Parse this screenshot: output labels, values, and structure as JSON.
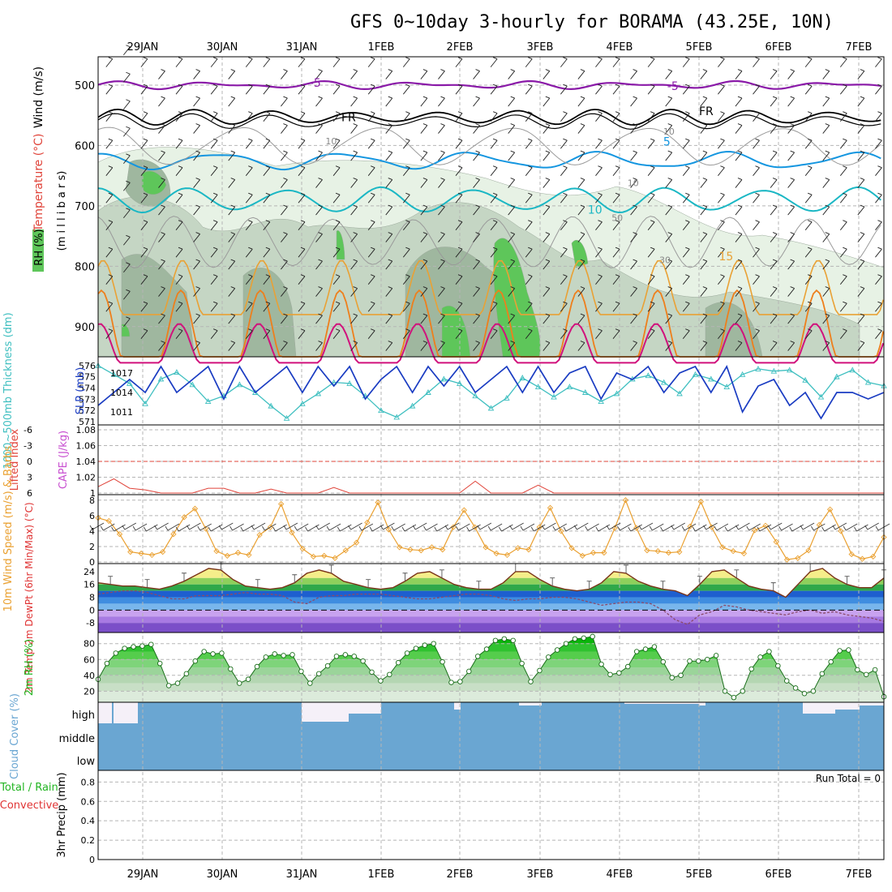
{
  "page": {
    "title": "GFS 0~10day 3-hourly for BORAMA (43.25E, 10N)"
  },
  "colors": {
    "purple": "#8a1aa8",
    "black": "#000000",
    "blue": "#1496e0",
    "cyan": "#1ab7c4",
    "orange": "#e9a135",
    "darkorange": "#ee7f1c",
    "magenta": "#d1127c",
    "rh_light": "#e7f2e5",
    "rh_mid": "#c5d6c4",
    "rh_dark": "#9fb79f",
    "rh_green": "#5ec65a",
    "slp_blue": "#1a3cc2",
    "thick_cyan": "#3fbfc0",
    "cape_violet": "#c84fd0",
    "li_red": "#e0443a",
    "wind_orange": "#eaa030",
    "cloud_blue": "#6aa6d2",
    "cloud_white": "#f5f0f8",
    "precip_green": "#22b522",
    "precip_red": "#e03535"
  },
  "chart_data": [
    {
      "panel": "upper-air",
      "type": "contour",
      "ylabel_wind": "Wind (m/s)",
      "ylabel_temp": "Temperature (°C)",
      "ylabel_rh": "RH (%)",
      "ylabel_axis": "(m i l l i b a r s)",
      "x_ticks": [
        "29JAN",
        "30JAN",
        "31JAN",
        "1FEB",
        "2FEB",
        "3FEB",
        "4FEB",
        "5FEB",
        "6FEB",
        "7FEB"
      ],
      "y_ticks": [
        500,
        600,
        700,
        800,
        900
      ],
      "ylim": [
        453,
        950
      ],
      "contour_labels": [
        {
          "text": "-5",
          "t": 2.1,
          "p": 503,
          "color": "purple"
        },
        {
          "text": "-5",
          "t": 6.6,
          "p": 508,
          "color": "purple"
        },
        {
          "text": "FR",
          "t": 2.5,
          "p": 560,
          "color": "black"
        },
        {
          "text": "FR",
          "t": 7.0,
          "p": 550,
          "color": "black"
        },
        {
          "text": "5",
          "t": 6.55,
          "p": 600,
          "color": "blue"
        },
        {
          "text": "10",
          "t": 5.6,
          "p": 713,
          "color": "cyan"
        },
        {
          "text": "15",
          "t": 7.25,
          "p": 790,
          "color": "orange"
        },
        {
          "text": "10",
          "t": 2.3,
          "p": 598,
          "color": "gray"
        },
        {
          "text": "10",
          "t": 6.1,
          "p": 667,
          "color": "gray"
        },
        {
          "text": "10",
          "t": 6.55,
          "p": 582,
          "color": "gray"
        },
        {
          "text": "50",
          "t": 5.9,
          "p": 725,
          "color": "gray"
        },
        {
          "text": "30",
          "t": 6.5,
          "p": 795,
          "color": "gray"
        }
      ]
    },
    {
      "panel": "slp-thickness",
      "type": "line",
      "ylabel_left": "1000~500mb Thickness (dm)",
      "ylabel_right": "SLP (mb)",
      "y_left_ticks": [
        571,
        572,
        573,
        574,
        575,
        576
      ],
      "y_right_ticks": [
        1011,
        1014,
        1017
      ],
      "series": [
        {
          "name": "SLP (mb)",
          "values": [
            1012,
            1014,
            1016,
            1014,
            1018,
            1014,
            1016,
            1018,
            1013,
            1018,
            1014,
            1016,
            1018,
            1014,
            1018,
            1015,
            1018,
            1013,
            1016,
            1018,
            1014,
            1018,
            1015,
            1018,
            1014,
            1016,
            1018,
            1014,
            1018,
            1014,
            1017,
            1018,
            1013,
            1017,
            1016,
            1018,
            1014,
            1017,
            1018,
            1014,
            1018,
            1011,
            1015,
            1016,
            1012,
            1014,
            1010,
            1014,
            1014,
            1013,
            1014
          ]
        },
        {
          "name": "1000~500mb Thickness (dm)",
          "values": [
            576,
            575.2,
            574.4,
            572.6,
            574.8,
            575.4,
            574.3,
            572.8,
            573.3,
            574.3,
            573.6,
            572.4,
            571.3,
            572.6,
            573.5,
            574.5,
            574.4,
            573.3,
            572,
            571.4,
            572.4,
            573.6,
            574.8,
            574.4,
            573.3,
            572.2,
            573.1,
            574.9,
            574.1,
            573.2,
            574.1,
            573.6,
            572.8,
            573.5,
            574.8,
            575.1,
            574.5,
            573.5,
            575.2,
            574.8,
            574.1,
            575.2,
            575.7,
            575.5,
            575.6,
            574.7,
            573.2,
            575,
            575.6,
            574.5,
            574.2
          ]
        }
      ]
    },
    {
      "panel": "cape-li",
      "type": "line",
      "ylabel_left": "Lifted Index",
      "ylabel_right": "CAPE (J/kg)",
      "y_left_ticks": [
        "-6",
        "-3",
        "0",
        "3",
        "6"
      ],
      "y_right_ticks": [
        "1.08",
        "1.06",
        "1.04",
        "1.02",
        "1"
      ],
      "series": [
        {
          "name": "CAPE (J/kg)",
          "values": [
            1.008,
            1.018,
            1.006,
            1.004,
            1,
            1,
            1,
            1.006,
            1.006,
            1,
            1,
            1.005,
            1,
            1,
            1,
            1.007,
            1,
            1,
            1,
            1,
            1,
            1,
            1,
            1,
            1.015,
            1,
            1,
            1,
            1.01,
            1,
            1,
            1,
            1,
            1,
            1,
            1,
            1,
            1,
            1,
            1,
            1,
            1,
            1,
            1,
            1,
            1,
            1,
            1,
            1,
            1,
            1
          ]
        }
      ]
    },
    {
      "panel": "wind10m",
      "type": "line",
      "ylabel": "10m Wind Speed (m/s) & Barbs",
      "y_ticks": [
        0,
        2,
        4,
        6,
        8
      ],
      "series": [
        {
          "name": "10m Wind Speed",
          "values": [
            5.7,
            5.3,
            3.6,
            1.3,
            1.1,
            0.9,
            1.3,
            3.6,
            5.8,
            6.9,
            4.3,
            1.4,
            0.8,
            1.2,
            0.9,
            3.5,
            4.5,
            7.5,
            3.8,
            1.7,
            0.7,
            0.8,
            0.5,
            1.5,
            2.5,
            5.1,
            7.7,
            4.2,
            1.9,
            1.6,
            1.5,
            1.9,
            1.6,
            4.5,
            6.7,
            4.5,
            1.9,
            1.1,
            0.9,
            1.8,
            1.6,
            4.5,
            7.0,
            4.0,
            1.8,
            0.8,
            1.2,
            1.2,
            4.4,
            8.0,
            4.4,
            1.5,
            1.4,
            1.2,
            1.3,
            4.6,
            7.8,
            4.5,
            1.9,
            1.4,
            1.1,
            4.1,
            4.7,
            2.6,
            0.3,
            0.5,
            1.5,
            4.8,
            6.8,
            4.0,
            1.0,
            0.4,
            0.7,
            3.2
          ]
        }
      ]
    },
    {
      "panel": "temp2m",
      "type": "area",
      "ylabel": "2m Temp 2m DewPt (6hr Min/Max) (°C)",
      "y_ticks": [
        24,
        16,
        8,
        0,
        -8
      ],
      "series": [
        {
          "name": "2m Temp",
          "values": [
            17,
            16,
            15,
            15,
            14,
            13,
            15,
            18,
            22,
            26,
            25,
            19,
            15,
            14,
            13,
            14,
            17,
            23,
            25,
            23,
            18,
            16,
            14,
            13,
            14,
            18,
            23,
            24,
            20,
            16,
            14,
            13,
            13,
            17,
            24,
            24,
            19,
            15,
            13,
            12,
            13,
            17,
            24,
            23,
            18,
            15,
            13,
            12,
            9,
            16,
            24,
            25,
            20,
            15,
            13,
            12,
            8,
            16,
            24,
            26,
            20,
            16,
            14,
            14,
            20
          ]
        },
        {
          "name": "2m DewPt",
          "values": [
            10,
            11,
            12,
            12,
            11,
            9,
            7,
            7,
            9,
            9,
            9,
            10,
            11,
            10,
            10,
            9,
            5,
            4,
            8,
            9,
            9,
            10,
            10,
            10,
            9,
            8,
            7,
            7,
            8,
            9,
            10,
            10,
            9,
            7,
            6,
            7,
            7,
            8,
            8,
            7,
            5,
            3,
            4,
            5,
            5,
            4,
            0,
            -6,
            -9,
            -3,
            -1,
            3,
            2,
            0,
            -1,
            -2,
            -3,
            -1,
            0,
            -2,
            -1,
            -3,
            -4,
            -5,
            -7
          ]
        }
      ]
    },
    {
      "panel": "rh2m",
      "type": "area",
      "ylabel": "2m RH (%)",
      "y_ticks": [
        20,
        40,
        60,
        80
      ],
      "series": [
        {
          "name": "2m RH",
          "values": [
            35,
            55,
            68,
            74,
            76,
            77,
            79,
            55,
            27,
            30,
            42,
            58,
            70,
            67,
            68,
            48,
            30,
            35,
            51,
            63,
            67,
            65,
            66,
            45,
            30,
            42,
            52,
            64,
            66,
            64,
            58,
            44,
            33,
            41,
            56,
            68,
            74,
            78,
            80,
            57,
            31,
            32,
            45,
            64,
            73,
            84,
            86,
            84,
            55,
            32,
            46,
            63,
            72,
            80,
            86,
            87,
            89,
            54,
            41,
            43,
            51,
            70,
            73,
            76,
            57,
            37,
            40,
            58,
            58,
            60,
            65,
            20,
            12,
            20,
            48,
            63,
            70,
            52,
            33,
            24,
            17,
            20,
            42,
            57,
            71,
            72,
            47,
            41,
            47,
            13
          ]
        }
      ]
    },
    {
      "panel": "cloud",
      "type": "area",
      "ylabel": "Cloud Cover (%)",
      "y_ticks": [
        "high",
        "middle",
        "low"
      ]
    },
    {
      "panel": "precip",
      "type": "bar",
      "ylabel_left": "Total / Rain Convective",
      "ylabel_axis": "3hr Precip (mm)",
      "y_ticks": [
        0,
        0.2,
        0.4,
        0.6,
        0.8
      ],
      "run_total": "Run Total = 0",
      "x_ticks": [
        "29JAN",
        "30JAN",
        "31JAN",
        "1FEB",
        "2FEB",
        "3FEB",
        "4FEB",
        "5FEB",
        "6FEB",
        "7FEB"
      ]
    }
  ]
}
